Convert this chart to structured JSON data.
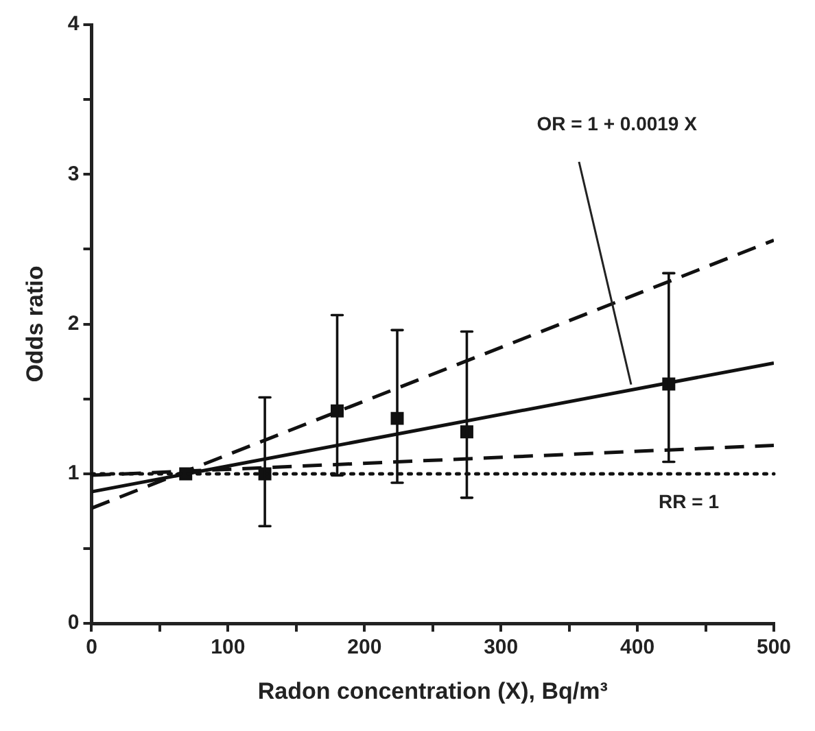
{
  "chart_data": {
    "type": "scatter",
    "xlabel": "Radon concentration (X), Bq/m³",
    "ylabel": "Odds ratio",
    "xlim": [
      0,
      500
    ],
    "ylim": [
      0,
      4
    ],
    "xticks": [
      0,
      {
        "value": 50,
        "label": null
      },
      100,
      {
        "value": 150,
        "label": null
      },
      200,
      {
        "value": 250,
        "label": null
      },
      300,
      {
        "value": 350,
        "label": null
      },
      400,
      {
        "value": 450,
        "label": null
      },
      500
    ],
    "yticks": [
      0,
      {
        "value": 0.5,
        "label": null
      },
      1,
      {
        "value": 1.5,
        "label": null
      },
      2,
      {
        "value": 2.5,
        "label": null
      },
      3,
      {
        "value": 3.5,
        "label": null
      },
      4
    ],
    "grid": false,
    "legend": false,
    "series": [
      {
        "type": "scatter",
        "color": "#111111",
        "marker": "square",
        "x": [
          69,
          127,
          180,
          224,
          275,
          423
        ],
        "values": [
          1.0,
          1.0,
          1.42,
          1.37,
          1.28,
          1.6
        ],
        "errors": [
          null,
          [
            0.65,
            1.51
          ],
          [
            0.99,
            2.06
          ],
          [
            0.94,
            1.96
          ],
          [
            0.84,
            1.95
          ],
          [
            1.08,
            2.34
          ]
        ]
      },
      {
        "type": "line",
        "color": "#111111",
        "line_style": "solid",
        "marker": "none",
        "x": [
          0,
          500
        ],
        "values": [
          0.88,
          1.74
        ]
      },
      {
        "type": "line",
        "color": "#111111",
        "line_style": "dashed",
        "marker": "none",
        "x": [
          0,
          500
        ],
        "values": [
          0.77,
          2.56
        ]
      },
      {
        "type": "line",
        "color": "#111111",
        "line_style": "dashed",
        "marker": "none",
        "x": [
          0,
          500
        ],
        "values": [
          0.99,
          1.19
        ]
      }
    ],
    "ref_lines": [
      {
        "axis": "y",
        "value": 1,
        "label": "RR = 1",
        "line_style": "dotted",
        "color": "#111111"
      }
    ],
    "annotations": [
      "OR = 1 + 0.0019 X"
    ]
  }
}
